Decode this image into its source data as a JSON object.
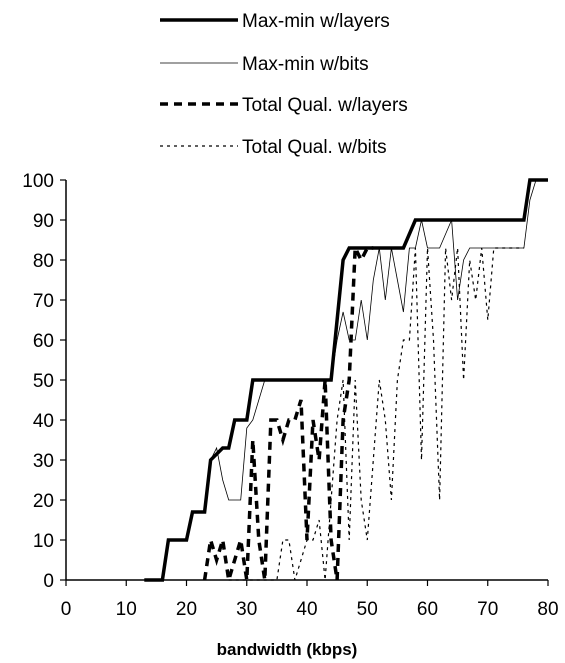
{
  "chart_data": {
    "type": "line",
    "title": "",
    "xlabel": "bandwidth (kbps)",
    "ylabel": "",
    "xlim": [
      0,
      80
    ],
    "ylim": [
      0,
      100
    ],
    "x_ticks": [
      0,
      10,
      20,
      30,
      40,
      50,
      60,
      70,
      80
    ],
    "y_ticks": [
      0,
      10,
      20,
      30,
      40,
      50,
      60,
      70,
      80,
      90,
      100
    ],
    "grid": false,
    "legend_position": "top",
    "series": [
      {
        "name": "Max-min w/layers",
        "style": "solid-thick",
        "points": [
          [
            13,
            0
          ],
          [
            16,
            0
          ],
          [
            17,
            10
          ],
          [
            20,
            10
          ],
          [
            21,
            17
          ],
          [
            23,
            17
          ],
          [
            24,
            30
          ],
          [
            26,
            33
          ],
          [
            27,
            33
          ],
          [
            28,
            40
          ],
          [
            30,
            40
          ],
          [
            31,
            50
          ],
          [
            44,
            50
          ],
          [
            46,
            80
          ],
          [
            47,
            83
          ],
          [
            56,
            83
          ],
          [
            58,
            90
          ],
          [
            76,
            90
          ],
          [
            77,
            100
          ],
          [
            80,
            100
          ]
        ]
      },
      {
        "name": "Max-min w/bits",
        "style": "solid-thin",
        "points": [
          [
            16,
            0
          ],
          [
            17,
            10
          ],
          [
            20,
            10
          ],
          [
            21,
            17
          ],
          [
            23,
            17
          ],
          [
            24,
            30
          ],
          [
            25,
            33
          ],
          [
            26,
            25
          ],
          [
            27,
            20
          ],
          [
            29,
            20
          ],
          [
            30,
            38
          ],
          [
            31,
            40
          ],
          [
            32,
            45
          ],
          [
            33,
            50
          ],
          [
            44,
            50
          ],
          [
            45,
            60
          ],
          [
            46,
            67
          ],
          [
            47,
            60
          ],
          [
            48,
            60
          ],
          [
            49,
            70
          ],
          [
            50,
            60
          ],
          [
            51,
            75
          ],
          [
            52,
            83
          ],
          [
            53,
            70
          ],
          [
            54,
            83
          ],
          [
            55,
            75
          ],
          [
            56,
            67
          ],
          [
            57,
            83
          ],
          [
            58,
            83
          ],
          [
            59,
            90
          ],
          [
            60,
            83
          ],
          [
            62,
            83
          ],
          [
            64,
            90
          ],
          [
            65,
            70
          ],
          [
            66,
            80
          ],
          [
            67,
            83
          ],
          [
            76,
            83
          ],
          [
            77,
            95
          ],
          [
            78,
            100
          ],
          [
            80,
            100
          ]
        ]
      },
      {
        "name": "Total Qual. w/layers",
        "style": "dashed-thick",
        "points": [
          [
            23,
            0
          ],
          [
            24,
            10
          ],
          [
            25,
            5
          ],
          [
            26,
            10
          ],
          [
            27,
            0
          ],
          [
            28,
            5
          ],
          [
            29,
            10
          ],
          [
            30,
            0
          ],
          [
            31,
            35
          ],
          [
            32,
            10
          ],
          [
            33,
            0
          ],
          [
            34,
            40
          ],
          [
            35,
            40
          ],
          [
            36,
            35
          ],
          [
            37,
            40
          ],
          [
            38,
            40
          ],
          [
            39,
            45
          ],
          [
            40,
            10
          ],
          [
            41,
            40
          ],
          [
            42,
            30
          ],
          [
            43,
            50
          ],
          [
            44,
            10
          ],
          [
            45,
            0
          ],
          [
            46,
            40
          ],
          [
            47,
            50
          ],
          [
            48,
            83
          ],
          [
            49,
            80
          ],
          [
            50,
            83
          ],
          [
            51,
            83
          ]
        ]
      },
      {
        "name": "Total Qual. w/bits",
        "style": "dotted",
        "points": [
          [
            27,
            0
          ],
          [
            28,
            0
          ],
          [
            35,
            0
          ],
          [
            36,
            10
          ],
          [
            37,
            10
          ],
          [
            38,
            0
          ],
          [
            39,
            5
          ],
          [
            40,
            10
          ],
          [
            41,
            10
          ],
          [
            42,
            15
          ],
          [
            43,
            0
          ],
          [
            44,
            20
          ],
          [
            45,
            40
          ],
          [
            46,
            50
          ],
          [
            47,
            10
          ],
          [
            48,
            50
          ],
          [
            49,
            20
          ],
          [
            50,
            10
          ],
          [
            51,
            30
          ],
          [
            52,
            50
          ],
          [
            53,
            40
          ],
          [
            54,
            20
          ],
          [
            55,
            50
          ],
          [
            56,
            60
          ],
          [
            57,
            60
          ],
          [
            58,
            83
          ],
          [
            59,
            30
          ],
          [
            60,
            83
          ],
          [
            61,
            60
          ],
          [
            62,
            20
          ],
          [
            63,
            83
          ],
          [
            64,
            70
          ],
          [
            65,
            83
          ],
          [
            66,
            50
          ],
          [
            67,
            80
          ],
          [
            68,
            70
          ],
          [
            69,
            83
          ],
          [
            70,
            65
          ],
          [
            71,
            83
          ],
          [
            76,
            83
          ]
        ]
      }
    ]
  }
}
